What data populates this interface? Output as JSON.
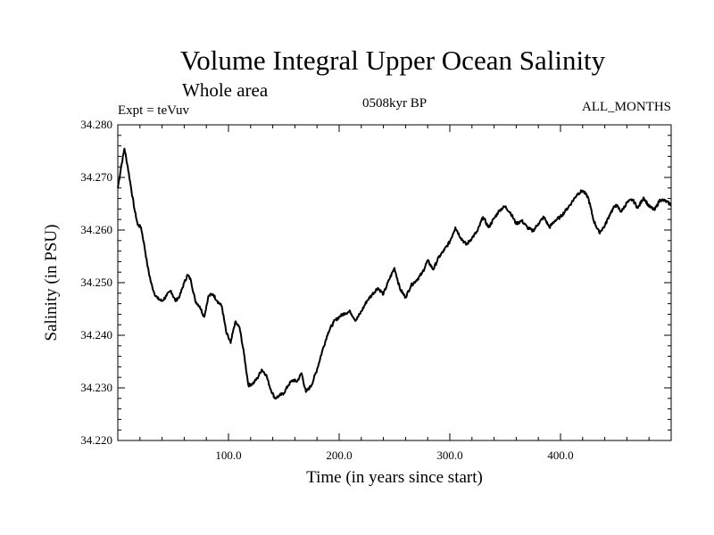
{
  "chart_data": {
    "type": "line",
    "title": "Volume Integral Upper Ocean Salinity",
    "subtitle": "Whole area",
    "expt_label": "Expt = teVuv",
    "period_label": "0508kyr BP",
    "months_label": "ALL_MONTHS",
    "xlabel": "Time (in years since start)",
    "ylabel": "Salinity (in PSU)",
    "xlim": [
      0,
      500
    ],
    "ylim": [
      34.22,
      34.28
    ],
    "x_ticks": [
      100,
      200,
      300,
      400
    ],
    "x_tick_labels": [
      "100.0",
      "200.0",
      "300.0",
      "400.0"
    ],
    "y_ticks": [
      34.22,
      34.23,
      34.24,
      34.25,
      34.26,
      34.27,
      34.28
    ],
    "y_tick_labels": [
      "34.220",
      "34.230",
      "34.240",
      "34.250",
      "34.260",
      "34.270",
      "34.280"
    ],
    "grid": false,
    "line_color": "#000000",
    "series": [
      {
        "x": [
          0,
          3,
          6,
          9,
          12,
          15,
          18,
          21,
          24,
          27,
          30,
          33,
          36,
          40,
          44,
          48,
          52,
          56,
          60,
          63,
          66,
          70,
          74,
          78,
          82,
          86,
          90,
          94,
          98,
          102,
          106,
          110,
          114,
          118,
          122,
          126,
          130,
          134,
          138,
          142,
          146,
          150,
          154,
          158,
          162,
          166,
          170,
          175,
          180,
          185,
          190,
          195,
          200,
          205,
          210,
          215,
          220,
          225,
          230,
          235,
          240,
          245,
          250,
          255,
          260,
          265,
          270,
          275,
          280,
          285,
          290,
          295,
          300,
          305,
          310,
          315,
          320,
          325,
          330,
          335,
          340,
          345,
          350,
          355,
          360,
          365,
          370,
          375,
          380,
          385,
          390,
          395,
          400,
          405,
          410,
          415,
          420,
          425,
          430,
          435,
          440,
          445,
          450,
          455,
          460,
          465,
          470,
          475,
          480,
          485,
          490,
          495,
          500
        ],
        "y": [
          34.268,
          34.272,
          34.2755,
          34.272,
          34.268,
          34.264,
          34.261,
          34.2605,
          34.257,
          34.253,
          34.25,
          34.248,
          34.247,
          34.2465,
          34.2475,
          34.2485,
          34.2465,
          34.2475,
          34.25,
          34.2515,
          34.2505,
          34.2465,
          34.2455,
          34.2435,
          34.2475,
          34.2478,
          34.2465,
          34.2455,
          34.2405,
          34.2385,
          34.2425,
          34.2415,
          34.2365,
          34.2305,
          34.2308,
          34.2318,
          34.2335,
          34.2325,
          34.2298,
          34.228,
          34.2285,
          34.229,
          34.2305,
          34.2315,
          34.2312,
          34.2328,
          34.2292,
          34.2305,
          34.2335,
          34.2372,
          34.2405,
          34.2425,
          34.2435,
          34.2442,
          34.2445,
          34.2428,
          34.2445,
          34.2465,
          34.2478,
          34.249,
          34.2478,
          34.2505,
          34.2528,
          34.2488,
          34.2472,
          34.2495,
          34.2505,
          34.2518,
          34.2542,
          34.2525,
          34.2548,
          34.2562,
          34.2578,
          34.2605,
          34.2585,
          34.2572,
          34.2585,
          34.2598,
          34.2625,
          34.2605,
          34.2622,
          34.2638,
          34.2645,
          34.2632,
          34.2612,
          34.2618,
          34.2605,
          34.2598,
          34.2612,
          34.2625,
          34.2605,
          34.2618,
          34.2625,
          34.2638,
          34.2652,
          34.2668,
          34.2675,
          34.2662,
          34.2618,
          34.2595,
          34.2608,
          34.2632,
          34.2648,
          34.2635,
          34.2652,
          34.2658,
          34.2642,
          34.2662,
          34.2645,
          34.2638,
          34.2658,
          34.2655,
          34.2648
        ]
      }
    ]
  }
}
